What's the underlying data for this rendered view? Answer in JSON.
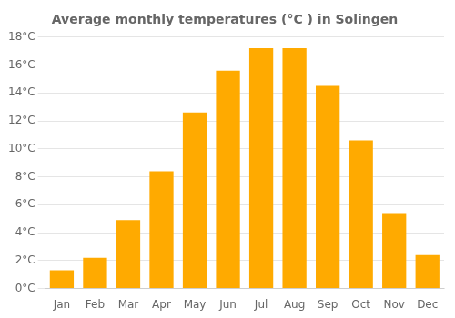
{
  "chart_data": {
    "type": "bar",
    "title": "Average monthly temperatures (°C ) in Solingen",
    "categories": [
      "Jan",
      "Feb",
      "Mar",
      "Apr",
      "May",
      "Jun",
      "Jul",
      "Aug",
      "Sep",
      "Oct",
      "Nov",
      "Dec"
    ],
    "values": [
      1.3,
      2.2,
      4.9,
      8.4,
      12.6,
      15.6,
      17.2,
      17.2,
      14.5,
      10.6,
      5.4,
      2.4
    ],
    "color": "#FFAA00",
    "ylim": [
      0,
      18
    ],
    "yticks": [
      {
        "value": 0,
        "label": "0°C"
      },
      {
        "value": 2,
        "label": "2°C"
      },
      {
        "value": 4,
        "label": "4°C"
      },
      {
        "value": 6,
        "label": "6°C"
      },
      {
        "value": 8,
        "label": "8°C"
      },
      {
        "value": 10,
        "label": "10°C"
      },
      {
        "value": 12,
        "label": "12°C"
      },
      {
        "value": 14,
        "label": "14°C"
      },
      {
        "value": 16,
        "label": "16°C"
      },
      {
        "value": 18,
        "label": "18°C"
      }
    ],
    "grid": true
  }
}
